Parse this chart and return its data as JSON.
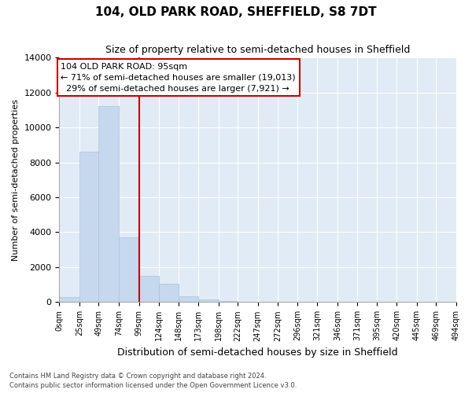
{
  "title": "104, OLD PARK ROAD, SHEFFIELD, S8 7DT",
  "subtitle": "Size of property relative to semi-detached houses in Sheffield",
  "xlabel": "Distribution of semi-detached houses by size in Sheffield",
  "ylabel": "Number of semi-detached properties",
  "footer_line1": "Contains HM Land Registry data © Crown copyright and database right 2024.",
  "footer_line2": "Contains public sector information licensed under the Open Government Licence v3.0.",
  "property_address": "104 OLD PARK ROAD: 95sqm",
  "pct_smaller": 71,
  "pct_larger": 29,
  "count_smaller": "19,013",
  "count_larger": "7,921",
  "property_size_sqm": 95,
  "bin_edges": [
    0,
    25,
    49,
    74,
    99,
    124,
    148,
    173,
    198,
    222,
    247,
    272,
    296,
    321,
    346,
    371,
    395,
    420,
    445,
    469,
    494
  ],
  "bin_labels": [
    "0sqm",
    "25sqm",
    "49sqm",
    "74sqm",
    "99sqm",
    "124sqm",
    "148sqm",
    "173sqm",
    "198sqm",
    "222sqm",
    "247sqm",
    "272sqm",
    "296sqm",
    "321sqm",
    "346sqm",
    "371sqm",
    "395sqm",
    "420sqm",
    "445sqm",
    "469sqm",
    "494sqm"
  ],
  "bar_heights": [
    300,
    8600,
    11200,
    3700,
    1500,
    1050,
    350,
    150,
    50,
    0,
    0,
    0,
    0,
    0,
    0,
    0,
    0,
    0,
    0,
    0
  ],
  "bar_color": "#c5d8ed",
  "bar_edge_color": "#a8c4dc",
  "vline_color": "#cc0000",
  "vline_x": 99,
  "annotation_box_color": "#cc0000",
  "bg_color": "#e0ebf5",
  "ylim": [
    0,
    14000
  ],
  "yticks": [
    0,
    2000,
    4000,
    6000,
    8000,
    10000,
    12000,
    14000
  ]
}
